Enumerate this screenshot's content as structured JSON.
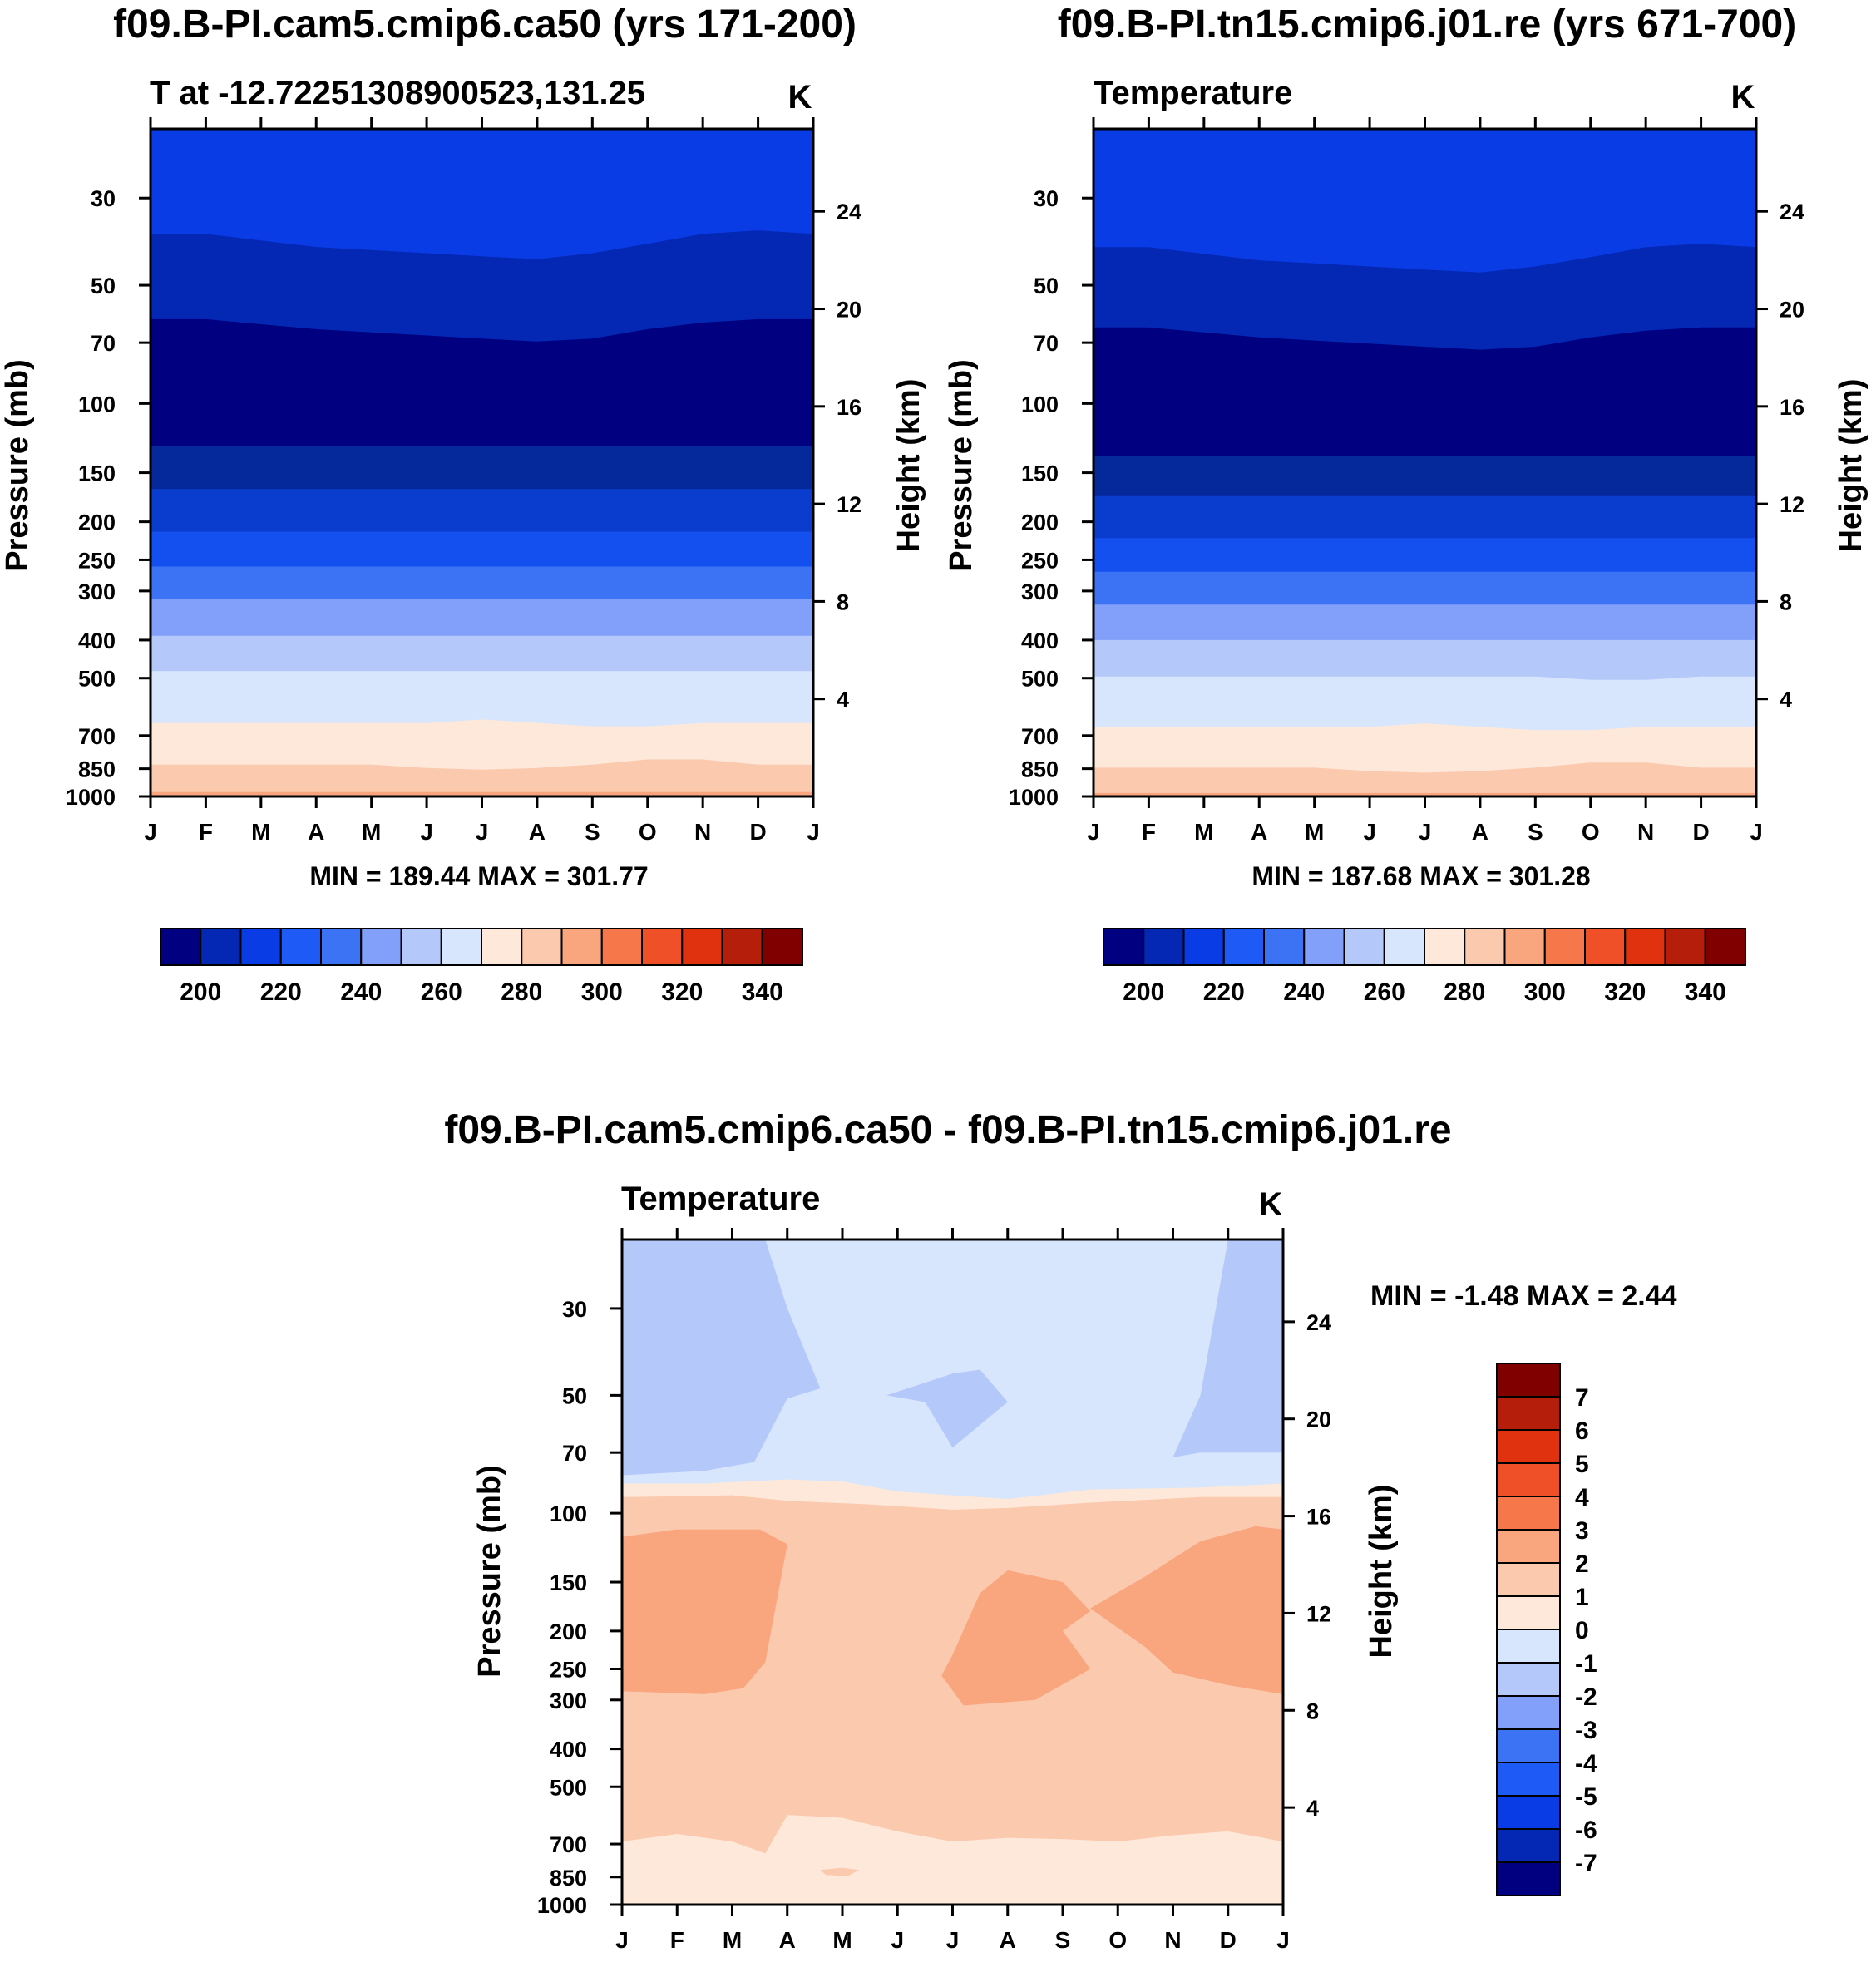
{
  "chart_data": [
    {
      "type": "contour",
      "title": "f09.B-PI.cam5.cmip6.ca50 (yrs 171-200)",
      "subtitle": "T at -12.72251308900523,131.25",
      "units": "K",
      "xlabel": "",
      "ylabel": "Pressure (mb)",
      "ylabel2": "Height (km)",
      "months": [
        "J",
        "F",
        "M",
        "A",
        "M",
        "J",
        "J",
        "A",
        "S",
        "O",
        "N",
        "D",
        "J"
      ],
      "pressure_ticks": [
        30,
        50,
        70,
        100,
        150,
        200,
        250,
        300,
        400,
        500,
        700,
        850,
        1000
      ],
      "height_ticks": [
        24,
        20,
        16,
        12,
        8,
        4
      ],
      "ylim_mb": [
        20,
        1000
      ],
      "minmax_text": "MIN = 189.44 MAX = 301.77",
      "levels": [
        {
          "p": 20,
          "bias": [
            0,
            0,
            0,
            0,
            0,
            0,
            0,
            0,
            0,
            0,
            0,
            0,
            0
          ],
          "color": "#0a3ce6"
        },
        {
          "p": 37,
          "bias": [
            0,
            0,
            0.04,
            0.08,
            0.1,
            0.12,
            0.14,
            0.16,
            0.12,
            0.06,
            0,
            -0.02,
            0
          ],
          "color": "#0528b4"
        },
        {
          "p": 61,
          "bias": [
            0,
            0,
            0.03,
            0.06,
            0.08,
            0.1,
            0.12,
            0.14,
            0.12,
            0.06,
            0.02,
            0,
            0
          ],
          "color": "#000080"
        },
        {
          "p": 128,
          "bias": [
            0,
            0,
            0,
            0,
            0,
            0,
            0,
            0,
            0,
            0,
            0,
            0,
            0
          ],
          "color": "#05289a"
        },
        {
          "p": 165,
          "bias": [
            0,
            0,
            0,
            0,
            0,
            0,
            0,
            0,
            0,
            0,
            0,
            0,
            0
          ],
          "color": "#0a3ccd"
        },
        {
          "p": 212,
          "bias": [
            0,
            0,
            0,
            0,
            0,
            0,
            0,
            0,
            0,
            0,
            0,
            0,
            0
          ],
          "color": "#1450f0"
        },
        {
          "p": 260,
          "bias": [
            0,
            0,
            0,
            0,
            0,
            0,
            0,
            0,
            0,
            0,
            0,
            0,
            0
          ],
          "color": "#3c73f5"
        },
        {
          "p": 315,
          "bias": [
            0,
            0,
            0,
            0,
            0,
            0,
            0,
            0,
            0,
            0,
            0,
            0,
            0
          ],
          "color": "#82a0fa"
        },
        {
          "p": 390,
          "bias": [
            0,
            0,
            0,
            0,
            0,
            0,
            0,
            0,
            0,
            0,
            0,
            0,
            0
          ],
          "color": "#b4c8fa"
        },
        {
          "p": 480,
          "bias": [
            0,
            0,
            0,
            0,
            0,
            0,
            0,
            0,
            0,
            0,
            0,
            0,
            0
          ],
          "color": "#d7e6fc"
        },
        {
          "p": 650,
          "bias": [
            0,
            0,
            0,
            0,
            0,
            0,
            -0.02,
            0,
            0.02,
            0.02,
            0,
            0,
            0
          ],
          "color": "#fde8d9"
        },
        {
          "p": 830,
          "bias": [
            0,
            0,
            0,
            0,
            0,
            0.02,
            0.03,
            0.02,
            0,
            -0.03,
            -0.03,
            0,
            0
          ],
          "color": "#fbc9ae"
        },
        {
          "p": 975,
          "bias": [
            0,
            0,
            0,
            0,
            0,
            0,
            0,
            0,
            0,
            0,
            0,
            0,
            0
          ],
          "color": "#f9a57e"
        }
      ],
      "colorbar": {
        "ticks": [
          "200",
          "220",
          "240",
          "260",
          "280",
          "300",
          "320",
          "340"
        ],
        "colors": [
          "#000080",
          "#0528b4",
          "#0a3ce6",
          "#1e5af5",
          "#3c73f5",
          "#82a0fa",
          "#b4c8fa",
          "#d7e6fc",
          "#fde8d9",
          "#fbc9ae",
          "#f9a57e",
          "#f6784a",
          "#f05028",
          "#e1320f",
          "#b41e0a",
          "#800000"
        ]
      }
    },
    {
      "type": "contour",
      "title": "f09.B-PI.tn15.cmip6.j01.re (yrs 671-700)",
      "subtitle": "Temperature",
      "units": "K",
      "xlabel": "",
      "ylabel": "Pressure (mb)",
      "ylabel2": "Height (km)",
      "months": [
        "J",
        "F",
        "M",
        "A",
        "M",
        "J",
        "J",
        "A",
        "S",
        "O",
        "N",
        "D",
        "J"
      ],
      "pressure_ticks": [
        30,
        50,
        70,
        100,
        150,
        200,
        250,
        300,
        400,
        500,
        700,
        850,
        1000
      ],
      "height_ticks": [
        24,
        20,
        16,
        12,
        8,
        4
      ],
      "ylim_mb": [
        20,
        1000
      ],
      "minmax_text": "MIN = 187.68 MAX = 301.28",
      "levels": [
        {
          "p": 20,
          "bias": [
            0,
            0,
            0,
            0,
            0,
            0,
            0,
            0,
            0,
            0,
            0,
            0,
            0
          ],
          "color": "#0a3ce6"
        },
        {
          "p": 40,
          "bias": [
            0,
            0,
            0.04,
            0.08,
            0.1,
            0.12,
            0.14,
            0.16,
            0.12,
            0.06,
            0,
            -0.02,
            0
          ],
          "color": "#0528b4"
        },
        {
          "p": 64,
          "bias": [
            0,
            0,
            0.03,
            0.06,
            0.08,
            0.1,
            0.12,
            0.14,
            0.12,
            0.06,
            0.02,
            0,
            0
          ],
          "color": "#000080"
        },
        {
          "p": 136,
          "bias": [
            0,
            0,
            0,
            0,
            0,
            0,
            0,
            0,
            0,
            0,
            0,
            0,
            0
          ],
          "color": "#05289a"
        },
        {
          "p": 172,
          "bias": [
            0,
            0,
            0,
            0,
            0,
            0,
            0,
            0,
            0,
            0,
            0,
            0,
            0
          ],
          "color": "#0a3ccd"
        },
        {
          "p": 220,
          "bias": [
            0,
            0,
            0,
            0,
            0,
            0,
            0,
            0,
            0,
            0,
            0,
            0,
            0
          ],
          "color": "#1450f0"
        },
        {
          "p": 268,
          "bias": [
            0,
            0,
            0,
            0,
            0,
            0,
            0,
            0,
            0,
            0,
            0,
            0,
            0
          ],
          "color": "#3c73f5"
        },
        {
          "p": 325,
          "bias": [
            0,
            0,
            0,
            0,
            0,
            0,
            0,
            0,
            0,
            0,
            0,
            0,
            0
          ],
          "color": "#82a0fa"
        },
        {
          "p": 400,
          "bias": [
            0,
            0,
            0,
            0,
            0,
            0,
            0,
            0,
            0,
            0,
            0,
            0,
            0
          ],
          "color": "#b4c8fa"
        },
        {
          "p": 495,
          "bias": [
            0,
            0,
            0,
            0,
            0,
            0,
            0,
            0,
            0,
            0.02,
            0.02,
            0,
            0
          ],
          "color": "#d7e6fc"
        },
        {
          "p": 665,
          "bias": [
            0,
            0,
            0,
            0,
            0,
            0,
            -0.02,
            0,
            0.02,
            0.02,
            0,
            0,
            0
          ],
          "color": "#fde8d9"
        },
        {
          "p": 845,
          "bias": [
            0,
            0,
            0,
            0,
            0,
            0.02,
            0.03,
            0.02,
            0,
            -0.03,
            -0.03,
            0,
            0
          ],
          "color": "#fbc9ae"
        },
        {
          "p": 980,
          "bias": [
            0,
            0,
            0,
            0,
            0,
            0,
            0,
            0,
            0,
            0,
            0,
            0,
            0
          ],
          "color": "#f9a57e"
        }
      ],
      "colorbar": {
        "ticks": [
          "200",
          "220",
          "240",
          "260",
          "280",
          "300",
          "320",
          "340"
        ],
        "colors": [
          "#000080",
          "#0528b4",
          "#0a3ce6",
          "#1e5af5",
          "#3c73f5",
          "#82a0fa",
          "#b4c8fa",
          "#d7e6fc",
          "#fde8d9",
          "#fbc9ae",
          "#f9a57e",
          "#f6784a",
          "#f05028",
          "#e1320f",
          "#b41e0a",
          "#800000"
        ]
      }
    },
    {
      "type": "contour-difference",
      "title": "f09.B-PI.cam5.cmip6.ca50 - f09.B-PI.tn15.cmip6.j01.re",
      "subtitle": "Temperature",
      "units": "K",
      "xlabel": "",
      "ylabel": "Pressure (mb)",
      "ylabel2": "Height (km)",
      "months": [
        "J",
        "F",
        "M",
        "A",
        "M",
        "J",
        "J",
        "A",
        "S",
        "O",
        "N",
        "D",
        "J"
      ],
      "pressure_ticks": [
        30,
        50,
        70,
        100,
        150,
        200,
        250,
        300,
        400,
        500,
        700,
        850,
        1000
      ],
      "height_ticks": [
        24,
        20,
        16,
        12,
        8,
        4
      ],
      "ylim_mb": [
        20,
        1000
      ],
      "minmax_text": "MIN =  -1.48 MAX =   2.44",
      "regions": [
        {
          "label": "0 to 1 base",
          "color": "#fde8d9",
          "poly": [
            [
              0,
              20
            ],
            [
              12,
              20
            ],
            [
              12,
              1000
            ],
            [
              0,
              1000
            ]
          ]
        },
        {
          "label": "-1 to 0 upper",
          "color": "#d7e6fc",
          "poly": [
            [
              0,
              20
            ],
            [
              12,
              20
            ],
            [
              12,
              84
            ],
            [
              10.5,
              86
            ],
            [
              8.5,
              87
            ],
            [
              7,
              92
            ],
            [
              6,
              90
            ],
            [
              5,
              88
            ],
            [
              4,
              83
            ],
            [
              3,
              82
            ],
            [
              1.5,
              84
            ],
            [
              0,
              84
            ]
          ]
        },
        {
          "label": "1 to 2",
          "color": "#fbc9ae",
          "poly": [
            [
              0,
              91
            ],
            [
              2,
              90
            ],
            [
              3,
              93
            ],
            [
              4.5,
              95
            ],
            [
              6,
              98
            ],
            [
              7,
              97
            ],
            [
              8.5,
              94
            ],
            [
              10.5,
              91
            ],
            [
              12,
              91
            ],
            [
              12,
              690
            ],
            [
              11,
              650
            ],
            [
              10,
              665
            ],
            [
              9,
              690
            ],
            [
              8,
              680
            ],
            [
              7,
              675
            ],
            [
              6,
              690
            ],
            [
              5,
              650
            ],
            [
              4,
              600
            ],
            [
              3,
              590
            ],
            [
              2.6,
              740
            ],
            [
              2,
              690
            ],
            [
              1,
              660
            ],
            [
              0,
              690
            ]
          ]
        },
        {
          "label": "-2 to -1 left",
          "color": "#b4c8fa",
          "poly": [
            [
              0,
              20
            ],
            [
              1,
              20
            ],
            [
              1.5,
              20
            ],
            [
              2,
              20
            ],
            [
              2.6,
              20
            ],
            [
              3,
              30
            ],
            [
              3.6,
              48
            ],
            [
              3,
              51
            ],
            [
              2.4,
              74
            ],
            [
              1.5,
              78
            ],
            [
              0,
              80
            ]
          ]
        },
        {
          "label": "-2 to -1 center",
          "color": "#b4c8fa",
          "poly": [
            [
              4.8,
              50
            ],
            [
              6,
              44
            ],
            [
              6.5,
              43
            ],
            [
              7,
              52
            ],
            [
              6,
              68
            ],
            [
              5.5,
              52
            ]
          ]
        },
        {
          "label": "-2 to -1 right",
          "color": "#b4c8fa",
          "poly": [
            [
              12,
              20
            ],
            [
              11,
              20
            ],
            [
              10.5,
              50
            ],
            [
              10,
              72
            ],
            [
              10.5,
              70
            ],
            [
              12,
              70
            ]
          ]
        },
        {
          "label": "2 to 3 left",
          "color": "#f9a57e",
          "poly": [
            [
              0,
              115
            ],
            [
              1,
              110
            ],
            [
              2.5,
              110
            ],
            [
              3,
              120
            ],
            [
              2.8,
              170
            ],
            [
              2.6,
              240
            ],
            [
              2.2,
              280
            ],
            [
              1.5,
              290
            ],
            [
              0,
              285
            ]
          ]
        },
        {
          "label": "2 to 3 center",
          "color": "#f9a57e",
          "poly": [
            [
              6,
              230
            ],
            [
              6.5,
              160
            ],
            [
              7,
              140
            ],
            [
              8,
              150
            ],
            [
              8.5,
              178
            ],
            [
              8,
              200
            ],
            [
              8.5,
              250
            ],
            [
              7.5,
              300
            ],
            [
              6.2,
              310
            ],
            [
              5.8,
              260
            ]
          ]
        },
        {
          "label": "2 to 3 right",
          "color": "#f9a57e",
          "poly": [
            [
              8.5,
              175
            ],
            [
              9.5,
              145
            ],
            [
              10.5,
              118
            ],
            [
              11.5,
              108
            ],
            [
              12,
              110
            ],
            [
              12,
              290
            ],
            [
              11,
              275
            ],
            [
              10,
              255
            ],
            [
              9.5,
              220
            ],
            [
              8.5,
              175
            ]
          ]
        },
        {
          "label": "1 to 2 small",
          "color": "#fbc9ae",
          "poly": [
            [
              3.6,
              815
            ],
            [
              4,
              805
            ],
            [
              4.3,
              815
            ],
            [
              4.1,
              845
            ],
            [
              3.7,
              840
            ]
          ]
        }
      ],
      "colorbar": {
        "ticks": [
          "7",
          "6",
          "5",
          "4",
          "3",
          "2",
          "1",
          "0",
          "-1",
          "-2",
          "-3",
          "-4",
          "-5",
          "-6",
          "-7"
        ],
        "colors": [
          "#800000",
          "#b41e0a",
          "#e1320f",
          "#f05028",
          "#f6784a",
          "#f9a57e",
          "#fbc9ae",
          "#fde8d9",
          "#d7e6fc",
          "#b4c8fa",
          "#82a0fa",
          "#3c73f5",
          "#1e5af5",
          "#0a3ce6",
          "#0528b4",
          "#000080"
        ]
      }
    }
  ]
}
